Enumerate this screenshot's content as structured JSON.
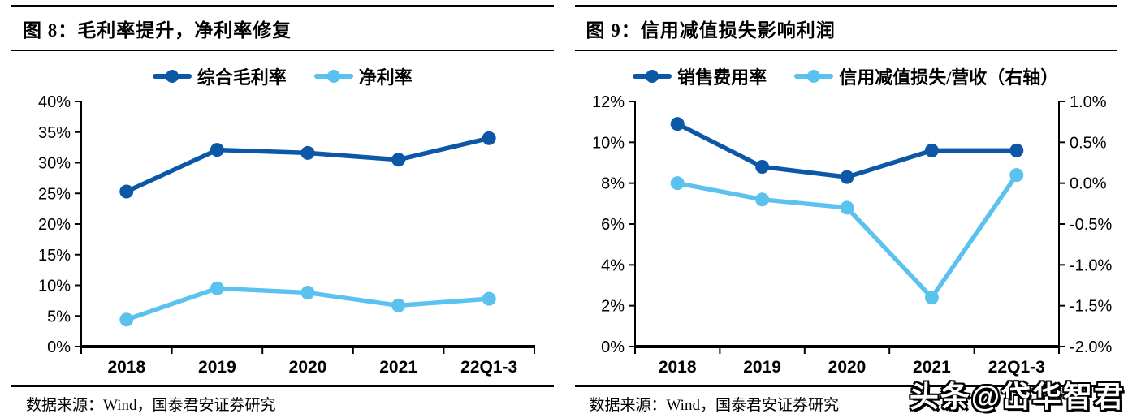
{
  "page": {
    "watermark": "头条@岱华智君"
  },
  "figures": [
    {
      "title": "图 8：毛利率提升，净利率修复",
      "source": "数据来源：Wind，国泰君安证券研究"
    },
    {
      "title": "图 9：信用减值损失影响利润",
      "source": "数据来源：Wind，国泰君安证券研究"
    }
  ],
  "chart_data": [
    {
      "type": "line",
      "title": "图 8：毛利率提升，净利率修复",
      "categories": [
        "2018",
        "2019",
        "2020",
        "2021",
        "22Q1-3"
      ],
      "series": [
        {
          "name": "综合毛利率",
          "color": "#0D57A7",
          "axis": "left",
          "values": [
            25.3,
            32.1,
            31.6,
            30.5,
            34.0
          ]
        },
        {
          "name": "净利率",
          "color": "#5BC2F0",
          "axis": "left",
          "values": [
            4.4,
            9.5,
            8.8,
            6.7,
            7.8
          ]
        }
      ],
      "y_left": {
        "min": 0,
        "max": 40,
        "step": 5,
        "labels": [
          "40%",
          "35%",
          "30%",
          "25%",
          "20%",
          "15%",
          "10%",
          "5%",
          "0%"
        ]
      },
      "legend_position": "top",
      "grid": false
    },
    {
      "type": "line",
      "title": "图 9：信用减值损失影响利润",
      "categories": [
        "2018",
        "2019",
        "2020",
        "2021",
        "22Q1-3"
      ],
      "series": [
        {
          "name": "销售费用率",
          "color": "#0D57A7",
          "axis": "left",
          "values": [
            10.9,
            8.8,
            8.3,
            9.6,
            9.6
          ]
        },
        {
          "name": "信用减值损失/营收（右轴）",
          "color": "#5BC2F0",
          "axis": "right",
          "values": [
            0.0,
            -0.2,
            -0.3,
            -1.4,
            0.1
          ]
        }
      ],
      "y_left": {
        "min": 0,
        "max": 12,
        "step": 2,
        "labels": [
          "12%",
          "10%",
          "8%",
          "6%",
          "4%",
          "2%",
          "0%"
        ]
      },
      "y_right": {
        "min": -2.0,
        "max": 1.0,
        "step": 0.5,
        "labels": [
          "1.0%",
          "0.5%",
          "0.0%",
          "-0.5%",
          "-1.0%",
          "-1.5%",
          "-2.0%"
        ]
      },
      "legend_position": "top",
      "grid": false
    }
  ]
}
